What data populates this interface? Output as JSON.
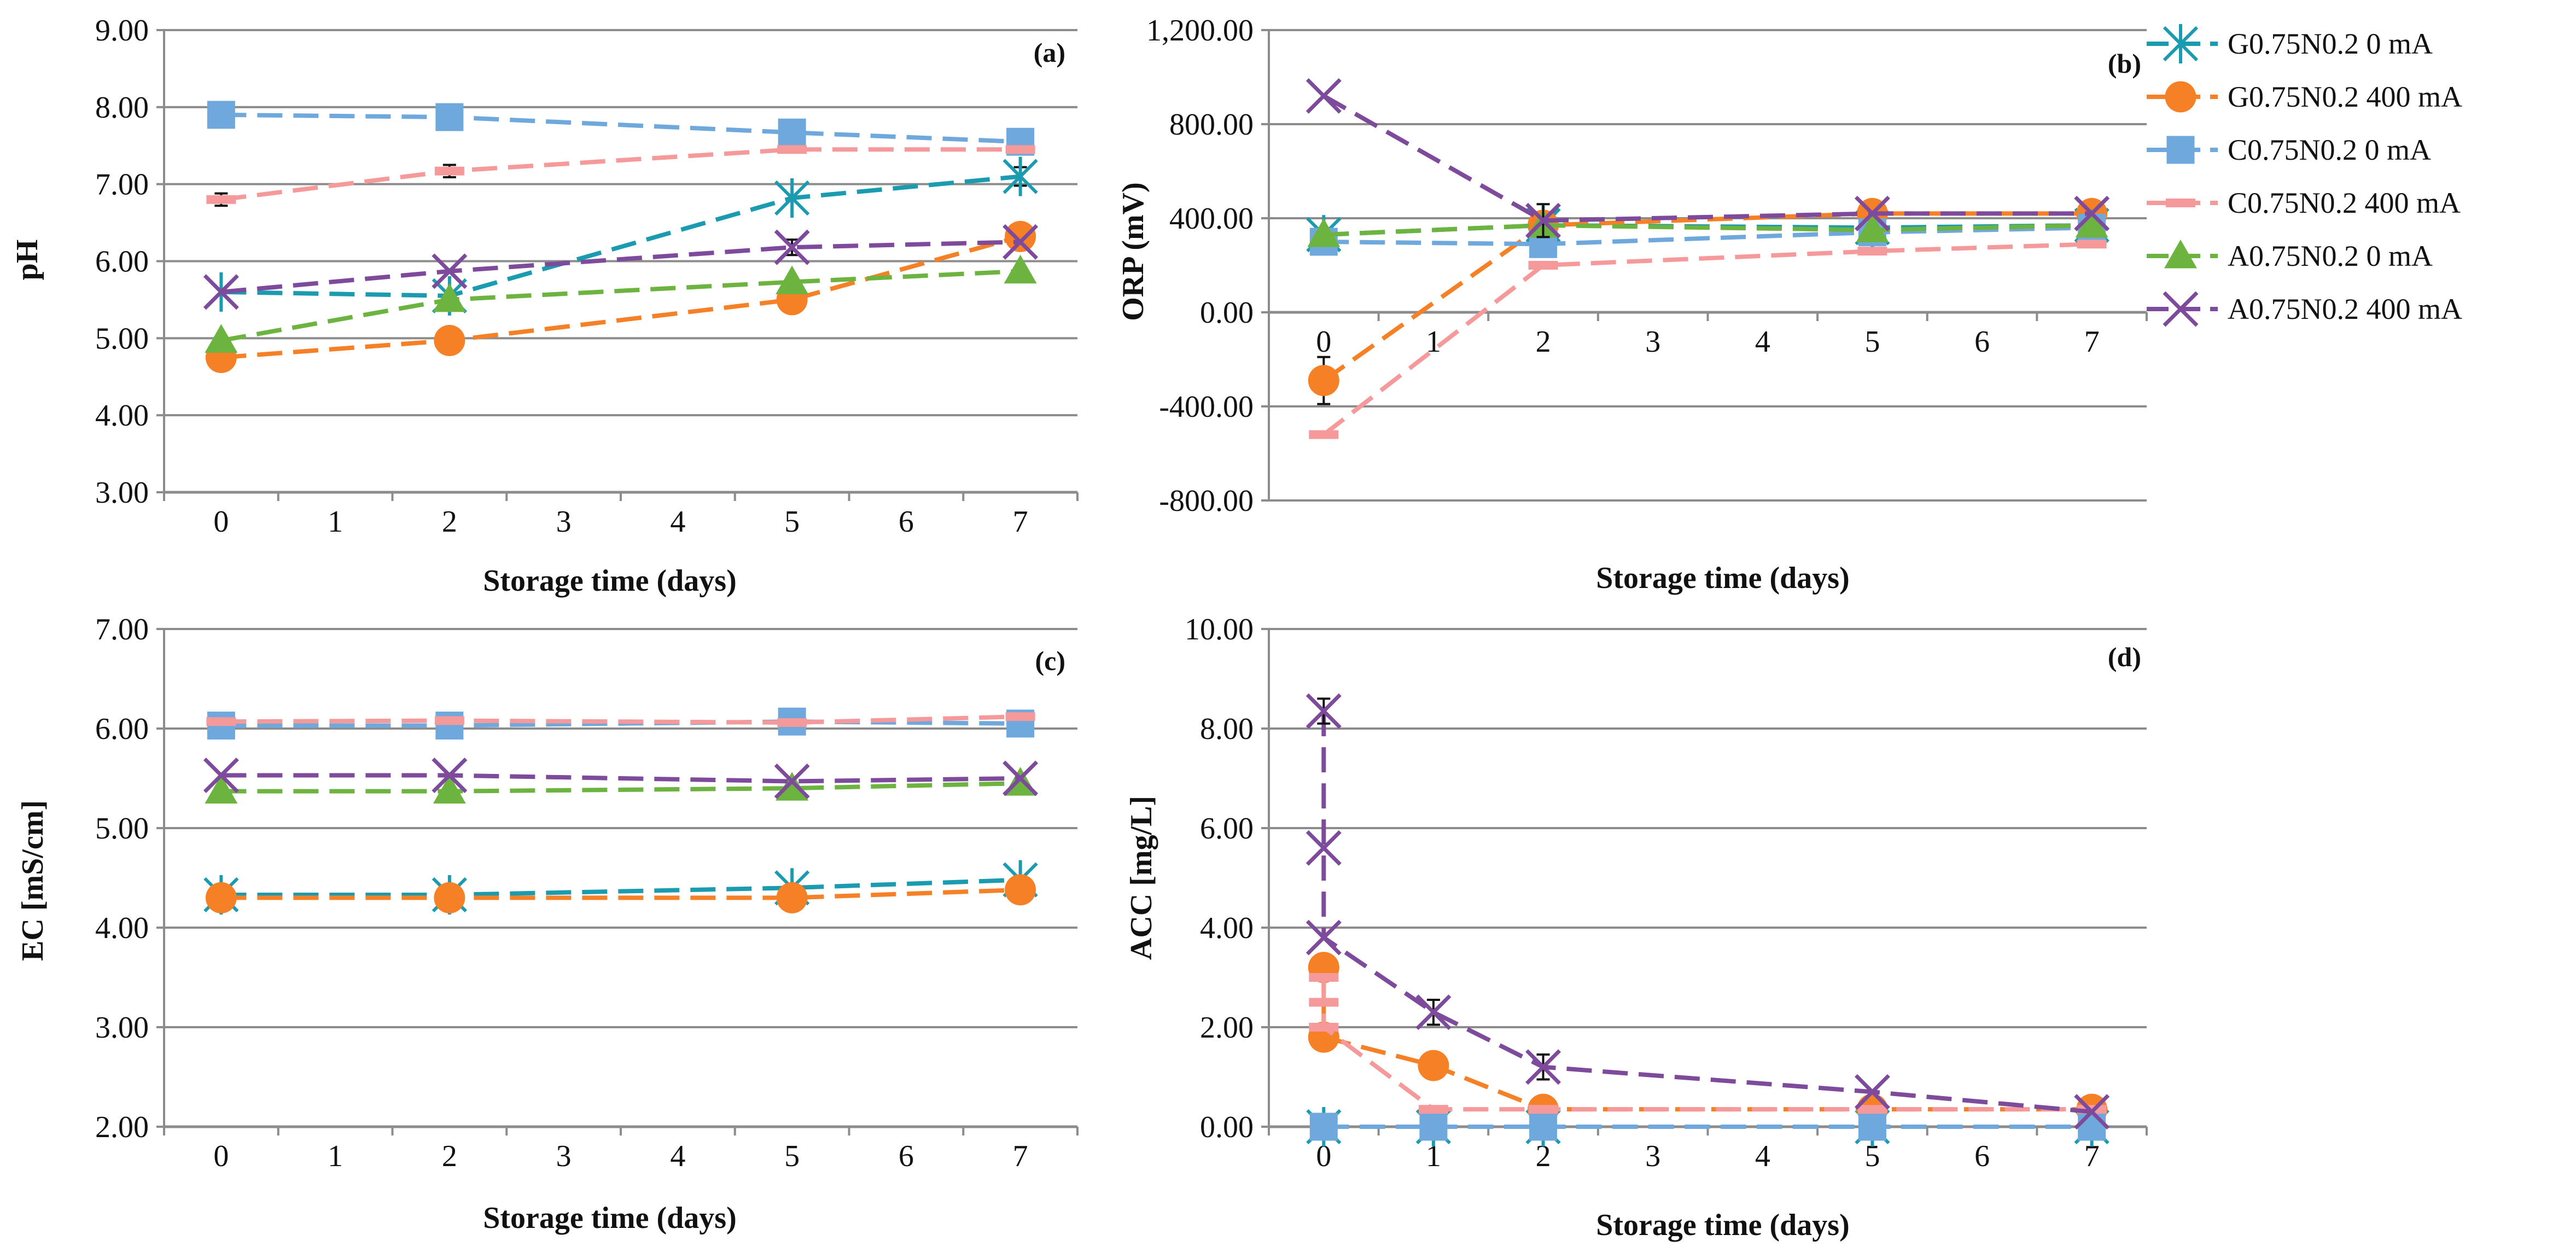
{
  "colors": {
    "G0.75N0.2 0 mA": "#1a9bb0",
    "G0.75N0.2 400 mA": "#f58025",
    "C0.75N0.2 0 mA": "#6fa8dc",
    "C0.75N0.2 400 mA": "#f5999a",
    "A0.75N0.2 0 mA": "#6cb33f",
    "A0.75N0.2 400 mA": "#7d4a9c",
    "grid": "#8c8c8c",
    "axis": "#8c8c8c"
  },
  "legend": [
    {
      "name": "G0.75N0.2 0 mA",
      "marker": "asterisk"
    },
    {
      "name": "G0.75N0.2 400 mA",
      "marker": "circle"
    },
    {
      "name": "C0.75N0.2 0 mA",
      "marker": "square"
    },
    {
      "name": "C0.75N0.2 400 mA",
      "marker": "dash"
    },
    {
      "name": "A0.75N0.2 0 mA",
      "marker": "triangle"
    },
    {
      "name": "A0.75N0.2 400 mA",
      "marker": "x"
    }
  ],
  "chart_data": [
    {
      "type": "line",
      "panel": "(a)",
      "xlabel": "Storage time (days)",
      "ylabel": "pH",
      "xlim": [
        -0.5,
        7.5
      ],
      "xticks": [
        0,
        1,
        2,
        3,
        4,
        5,
        6,
        7
      ],
      "ylim": [
        3,
        9
      ],
      "yticks": [
        3,
        4,
        5,
        6,
        7,
        8,
        9
      ],
      "ytick_labels": [
        "3.00",
        "4.00",
        "5.00",
        "6.00",
        "7.00",
        "8.00",
        "9.00"
      ],
      "grid": true,
      "series": [
        {
          "name": "G0.75N0.2 0 mA",
          "x": [
            0,
            2,
            5,
            7
          ],
          "y": [
            5.6,
            5.55,
            6.82,
            7.1
          ],
          "err": [
            0,
            0,
            0,
            0.12
          ]
        },
        {
          "name": "G0.75N0.2 400 mA",
          "x": [
            0,
            2,
            5,
            7
          ],
          "y": [
            4.75,
            4.97,
            5.5,
            6.32
          ],
          "err": [
            0,
            0,
            0,
            0
          ]
        },
        {
          "name": "C0.75N0.2 0 mA",
          "x": [
            0,
            2,
            5,
            7
          ],
          "y": [
            7.9,
            7.87,
            7.67,
            7.55
          ],
          "err": [
            0,
            0,
            0,
            0
          ]
        },
        {
          "name": "C0.75N0.2 400 mA",
          "x": [
            0,
            2,
            5,
            7
          ],
          "y": [
            6.8,
            7.17,
            7.45,
            7.45
          ],
          "err": [
            0.08,
            0.08,
            0,
            0
          ]
        },
        {
          "name": "A0.75N0.2 0 mA",
          "x": [
            0,
            2,
            5,
            7
          ],
          "y": [
            4.97,
            5.5,
            5.73,
            5.87
          ],
          "err": [
            0,
            0,
            0,
            0
          ]
        },
        {
          "name": "A0.75N0.2 400 mA",
          "x": [
            0,
            2,
            5,
            7
          ],
          "y": [
            5.6,
            5.87,
            6.18,
            6.25
          ],
          "err": [
            0,
            0,
            0.1,
            0
          ]
        }
      ]
    },
    {
      "type": "line",
      "panel": "(b)",
      "xlabel": "Storage time (days)",
      "ylabel": "ORP (mV)",
      "xlim": [
        -0.5,
        7.5
      ],
      "xticks": [
        0,
        1,
        2,
        3,
        4,
        5,
        6,
        7
      ],
      "ylim": [
        -800,
        1200
      ],
      "yticks": [
        -800,
        -400,
        0,
        400,
        800,
        1200
      ],
      "ytick_labels": [
        "-800.00",
        "-400.00",
        "0.00",
        "400.00",
        "800.00",
        "1,200.00"
      ],
      "grid": true,
      "series": [
        {
          "name": "G0.75N0.2 0 mA",
          "x": [
            0,
            2,
            5,
            7
          ],
          "y": [
            330,
            370,
            360,
            370
          ],
          "err": [
            0,
            0,
            0,
            0
          ]
        },
        {
          "name": "G0.75N0.2 400 mA",
          "x": [
            0,
            2,
            5,
            7
          ],
          "y": [
            -290,
            370,
            420,
            420
          ],
          "err": [
            100,
            0,
            0,
            0
          ]
        },
        {
          "name": "C0.75N0.2 0 mA",
          "x": [
            0,
            2,
            5,
            7
          ],
          "y": [
            300,
            290,
            340,
            360
          ],
          "err": [
            0,
            0,
            0,
            0
          ]
        },
        {
          "name": "C0.75N0.2 400 mA",
          "x": [
            0,
            2,
            5,
            7
          ],
          "y": [
            -520,
            200,
            260,
            290
          ],
          "err": [
            0,
            0,
            0,
            0
          ]
        },
        {
          "name": "A0.75N0.2 0 mA",
          "x": [
            0,
            2,
            5,
            7
          ],
          "y": [
            330,
            370,
            350,
            370
          ],
          "err": [
            0,
            0,
            0,
            0
          ]
        },
        {
          "name": "A0.75N0.2 400 mA",
          "x": [
            0,
            2,
            5,
            7
          ],
          "y": [
            920,
            390,
            420,
            420
          ],
          "err": [
            0,
            70,
            0,
            0
          ]
        }
      ]
    },
    {
      "type": "line",
      "panel": "(c)",
      "xlabel": "Storage time (days)",
      "ylabel": "EC [mS/cm]",
      "xlim": [
        -0.5,
        7.5
      ],
      "xticks": [
        0,
        1,
        2,
        3,
        4,
        5,
        6,
        7
      ],
      "ylim": [
        2,
        7
      ],
      "yticks": [
        2,
        3,
        4,
        5,
        6,
        7
      ],
      "ytick_labels": [
        "2.00",
        "3.00",
        "4.00",
        "5.00",
        "6.00",
        "7.00"
      ],
      "grid": true,
      "series": [
        {
          "name": "G0.75N0.2 0 mA",
          "x": [
            0,
            2,
            5,
            7
          ],
          "y": [
            4.33,
            4.33,
            4.4,
            4.48
          ],
          "err": [
            0,
            0,
            0,
            0
          ]
        },
        {
          "name": "G0.75N0.2 400 mA",
          "x": [
            0,
            2,
            5,
            7
          ],
          "y": [
            4.3,
            4.3,
            4.3,
            4.38
          ],
          "err": [
            0,
            0,
            0,
            0
          ]
        },
        {
          "name": "C0.75N0.2 0 mA",
          "x": [
            0,
            2,
            5,
            7
          ],
          "y": [
            6.03,
            6.03,
            6.07,
            6.05
          ],
          "err": [
            0,
            0,
            0,
            0
          ]
        },
        {
          "name": "C0.75N0.2 400 mA",
          "x": [
            0,
            2,
            5,
            7
          ],
          "y": [
            6.07,
            6.08,
            6.06,
            6.12
          ],
          "err": [
            0,
            0,
            0,
            0
          ]
        },
        {
          "name": "A0.75N0.2 0 mA",
          "x": [
            0,
            2,
            5,
            7
          ],
          "y": [
            5.37,
            5.37,
            5.4,
            5.45
          ],
          "err": [
            0,
            0,
            0,
            0
          ]
        },
        {
          "name": "A0.75N0.2 400 mA",
          "x": [
            0,
            2,
            5,
            7
          ],
          "y": [
            5.53,
            5.53,
            5.47,
            5.5
          ],
          "err": [
            0,
            0,
            0,
            0
          ]
        }
      ]
    },
    {
      "type": "line",
      "panel": "(d)",
      "xlabel": "Storage time (days)",
      "ylabel": "ACC [mg/L]",
      "xlim": [
        -0.5,
        7.5
      ],
      "xticks": [
        0,
        1,
        2,
        3,
        4,
        5,
        6,
        7
      ],
      "ylim": [
        0,
        10
      ],
      "yticks": [
        0,
        2,
        4,
        6,
        8,
        10
      ],
      "ytick_labels": [
        "0.00",
        "2.00",
        "4.00",
        "6.00",
        "8.00",
        "10.00"
      ],
      "grid": true,
      "series": [
        {
          "name": "G0.75N0.2 0 mA",
          "x": [
            0,
            1,
            2,
            5,
            7
          ],
          "y": [
            0,
            0,
            0,
            0,
            0
          ],
          "err": [
            0,
            0,
            0,
            0,
            0
          ]
        },
        {
          "name": "G0.75N0.2 400 mA",
          "x": [
            0,
            0,
            1,
            2,
            5,
            7
          ],
          "y": [
            3.2,
            1.8,
            1.23,
            0.35,
            0.35,
            0.35
          ],
          "err": [
            0,
            0,
            0,
            0,
            0,
            0
          ]
        },
        {
          "name": "C0.75N0.2 0 mA",
          "x": [
            0,
            1,
            2,
            5,
            7
          ],
          "y": [
            0,
            0,
            0,
            0,
            0
          ],
          "err": [
            0,
            0,
            0,
            0,
            0
          ]
        },
        {
          "name": "C0.75N0.2 400 mA",
          "x": [
            0,
            0,
            0,
            1,
            2,
            5,
            7
          ],
          "y": [
            3.0,
            2.5,
            2.0,
            0.35,
            0.35,
            0.35,
            0.35
          ],
          "err": [
            0,
            0,
            0,
            0,
            0,
            0,
            0
          ]
        },
        {
          "name": "A0.75N0.2 0 mA",
          "x": [],
          "y": [],
          "err": []
        },
        {
          "name": "A0.75N0.2 400 mA",
          "x": [
            0,
            0,
            0,
            1,
            2,
            5,
            7
          ],
          "y": [
            8.35,
            5.6,
            3.8,
            2.3,
            1.2,
            0.7,
            0.3
          ],
          "err": [
            0.25,
            0,
            0,
            0.25,
            0.25,
            0,
            0
          ]
        }
      ]
    }
  ]
}
